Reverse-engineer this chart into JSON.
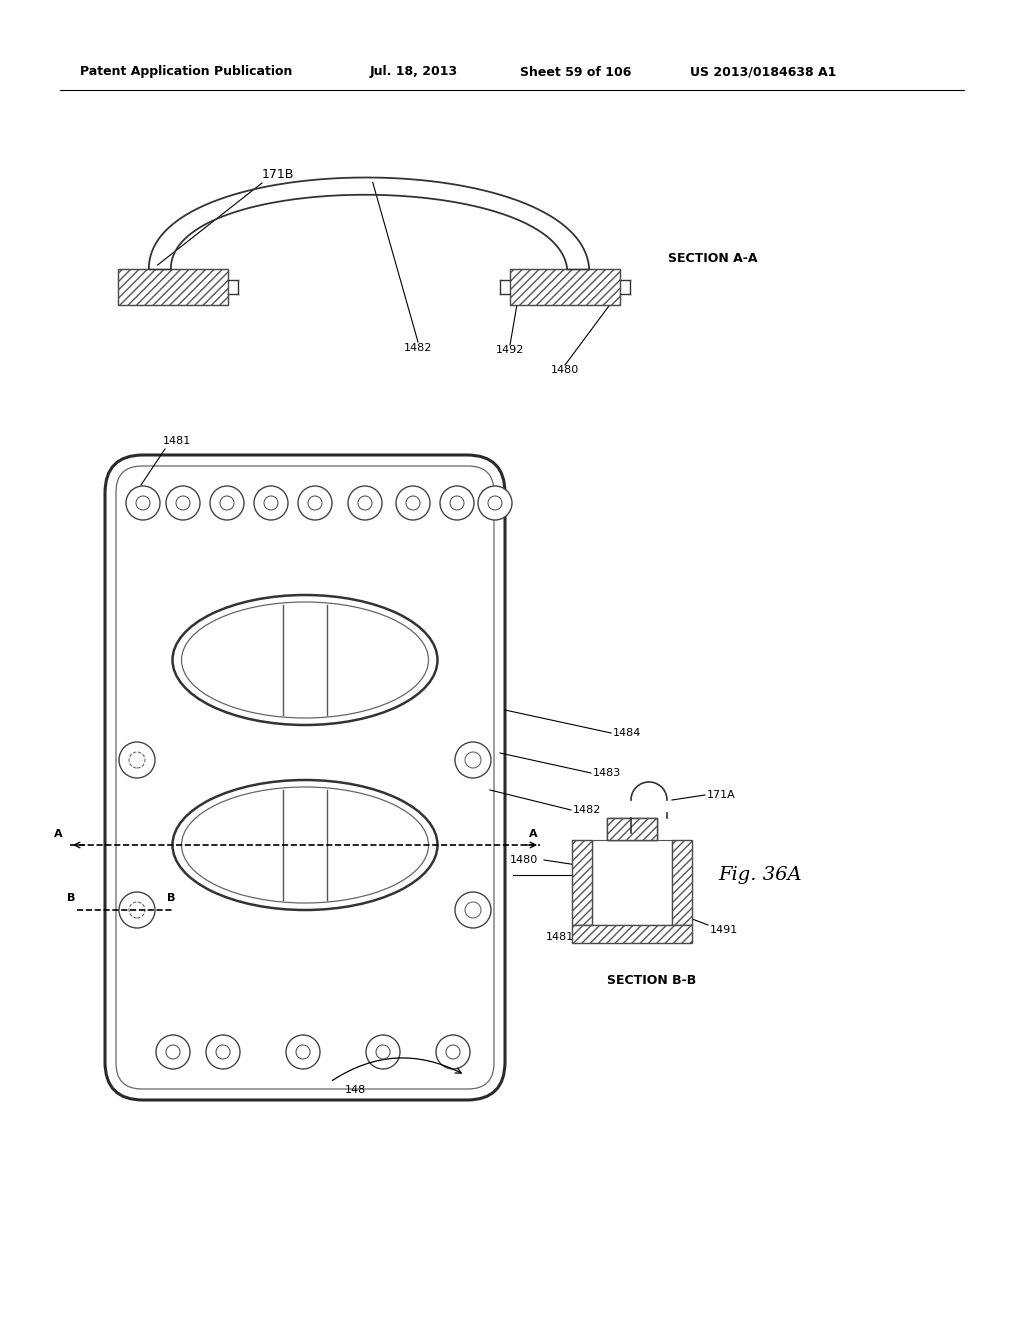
{
  "bg_color": "#ffffff",
  "header_text": "Patent Application Publication",
  "header_date": "Jul. 18, 2013",
  "header_sheet": "Sheet 59 of 106",
  "header_patent": "US 2013/0184638 A1",
  "fig_label": "Fig. 36A",
  "section_a_label": "SECTION A-A",
  "section_b_label": "SECTION B-B",
  "label_171B": "171B",
  "label_171A": "171A",
  "label_148": "148",
  "label_1480": "1480",
  "label_1481": "1481",
  "label_1482": "1482",
  "label_1483": "1483",
  "label_1484": "1484",
  "label_1491": "1491",
  "label_1492": "1492"
}
